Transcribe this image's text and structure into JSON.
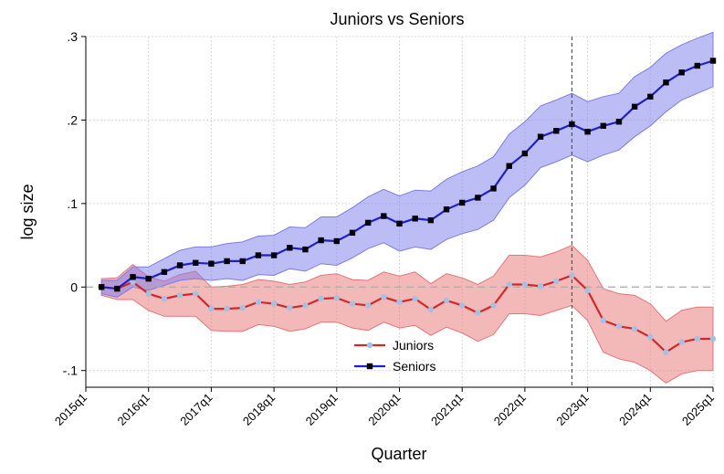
{
  "chart_data": {
    "type": "line",
    "title": "Juniors vs Seniors",
    "xlabel": "Quarter",
    "ylabel": "log size",
    "xlim": [
      2015.0,
      2025.0
    ],
    "ylim": [
      -0.12,
      0.3
    ],
    "y_ticks": [
      {
        "value": 0.3,
        "label": ".3"
      },
      {
        "value": 0.2,
        "label": ".2"
      },
      {
        "value": 0.1,
        "label": ".1"
      },
      {
        "value": 0.0,
        "label": "0"
      },
      {
        "value": -0.1,
        "label": "-.1"
      }
    ],
    "x_ticks": [
      {
        "value": 2015,
        "label": "2015q1"
      },
      {
        "value": 2016,
        "label": "2016q1"
      },
      {
        "value": 2017,
        "label": "2017q1"
      },
      {
        "value": 2018,
        "label": "2018q1"
      },
      {
        "value": 2019,
        "label": "2019q1"
      },
      {
        "value": 2020,
        "label": "2020q1"
      },
      {
        "value": 2021,
        "label": "2021q1"
      },
      {
        "value": 2022,
        "label": "2022q1"
      },
      {
        "value": 2023,
        "label": "2023q1"
      },
      {
        "value": 2024,
        "label": "2024q1"
      },
      {
        "value": 2025,
        "label": "2025q1"
      }
    ],
    "grid": true,
    "reference_hline": 0,
    "reference_vline": 2022.75,
    "legend_position": "bottom-center",
    "x": [
      2015.25,
      2015.5,
      2015.75,
      2016,
      2016.25,
      2016.5,
      2016.75,
      2017,
      2017.25,
      2017.5,
      2017.75,
      2018,
      2018.25,
      2018.5,
      2018.75,
      2019,
      2019.25,
      2019.5,
      2019.75,
      2020,
      2020.25,
      2020.5,
      2020.75,
      2021,
      2021.25,
      2021.5,
      2021.75,
      2022,
      2022.25,
      2022.5,
      2022.75,
      2023,
      2023.25,
      2023.5,
      2023.75,
      2024,
      2024.25,
      2024.5,
      2024.75,
      2025
    ],
    "series": [
      {
        "name": "Juniors",
        "color": "#d62728",
        "marker_color": "#9ec3e6",
        "band_color": "#e87474",
        "values": [
          0,
          -0.002,
          0.006,
          -0.008,
          -0.014,
          -0.01,
          -0.008,
          -0.026,
          -0.026,
          -0.025,
          -0.018,
          -0.02,
          -0.025,
          -0.022,
          -0.014,
          -0.013,
          -0.02,
          -0.022,
          -0.012,
          -0.018,
          -0.014,
          -0.027,
          -0.016,
          -0.022,
          -0.031,
          -0.022,
          0.003,
          0.003,
          0.001,
          0.007,
          0.014,
          -0.004,
          -0.04,
          -0.047,
          -0.05,
          -0.06,
          -0.078,
          -0.066,
          -0.062,
          -0.062
        ],
        "lower": [
          -0.01,
          -0.015,
          -0.015,
          -0.028,
          -0.035,
          -0.035,
          -0.035,
          -0.052,
          -0.053,
          -0.053,
          -0.045,
          -0.047,
          -0.053,
          -0.05,
          -0.042,
          -0.042,
          -0.049,
          -0.052,
          -0.042,
          -0.049,
          -0.046,
          -0.058,
          -0.048,
          -0.055,
          -0.065,
          -0.057,
          -0.032,
          -0.032,
          -0.034,
          -0.028,
          -0.022,
          -0.04,
          -0.078,
          -0.086,
          -0.09,
          -0.1,
          -0.115,
          -0.104,
          -0.1,
          -0.1
        ],
        "upper": [
          0.01,
          0.011,
          0.027,
          0.012,
          0.007,
          0.015,
          0.019,
          0,
          0.001,
          0.003,
          0.009,
          0.007,
          0.003,
          0.006,
          0.014,
          0.016,
          0.009,
          0.008,
          0.018,
          0.013,
          0.018,
          0.004,
          0.016,
          0.011,
          0.003,
          0.013,
          0.038,
          0.038,
          0.036,
          0.042,
          0.05,
          0.032,
          -0.002,
          -0.008,
          -0.01,
          -0.02,
          -0.041,
          -0.028,
          -0.024,
          -0.024
        ]
      },
      {
        "name": "Seniors",
        "color": "#1f1fd0",
        "marker_color": "#000000",
        "band_color": "#7b7bee",
        "values": [
          0,
          -0.002,
          0.012,
          0.01,
          0.018,
          0.026,
          0.029,
          0.028,
          0.031,
          0.031,
          0.038,
          0.038,
          0.047,
          0.045,
          0.056,
          0.055,
          0.065,
          0.077,
          0.085,
          0.076,
          0.082,
          0.08,
          0.093,
          0.101,
          0.107,
          0.118,
          0.145,
          0.16,
          0.18,
          0.187,
          0.195,
          0.186,
          0.193,
          0.198,
          0.216,
          0.228,
          0.245,
          0.257,
          0.265,
          0.271
        ],
        "lower": [
          -0.008,
          -0.012,
          0,
          -0.004,
          0.002,
          0.008,
          0.01,
          0.008,
          0.01,
          0.008,
          0.015,
          0.014,
          0.022,
          0.019,
          0.028,
          0.026,
          0.035,
          0.046,
          0.053,
          0.043,
          0.048,
          0.045,
          0.057,
          0.064,
          0.069,
          0.08,
          0.107,
          0.122,
          0.143,
          0.15,
          0.158,
          0.15,
          0.158,
          0.164,
          0.18,
          0.193,
          0.21,
          0.224,
          0.232,
          0.24
        ],
        "upper": [
          0.008,
          0.008,
          0.024,
          0.024,
          0.034,
          0.044,
          0.048,
          0.048,
          0.052,
          0.054,
          0.061,
          0.062,
          0.072,
          0.071,
          0.084,
          0.084,
          0.095,
          0.108,
          0.117,
          0.109,
          0.116,
          0.115,
          0.129,
          0.138,
          0.145,
          0.156,
          0.183,
          0.198,
          0.217,
          0.224,
          0.232,
          0.222,
          0.228,
          0.232,
          0.252,
          0.263,
          0.28,
          0.29,
          0.298,
          0.305
        ]
      }
    ]
  }
}
